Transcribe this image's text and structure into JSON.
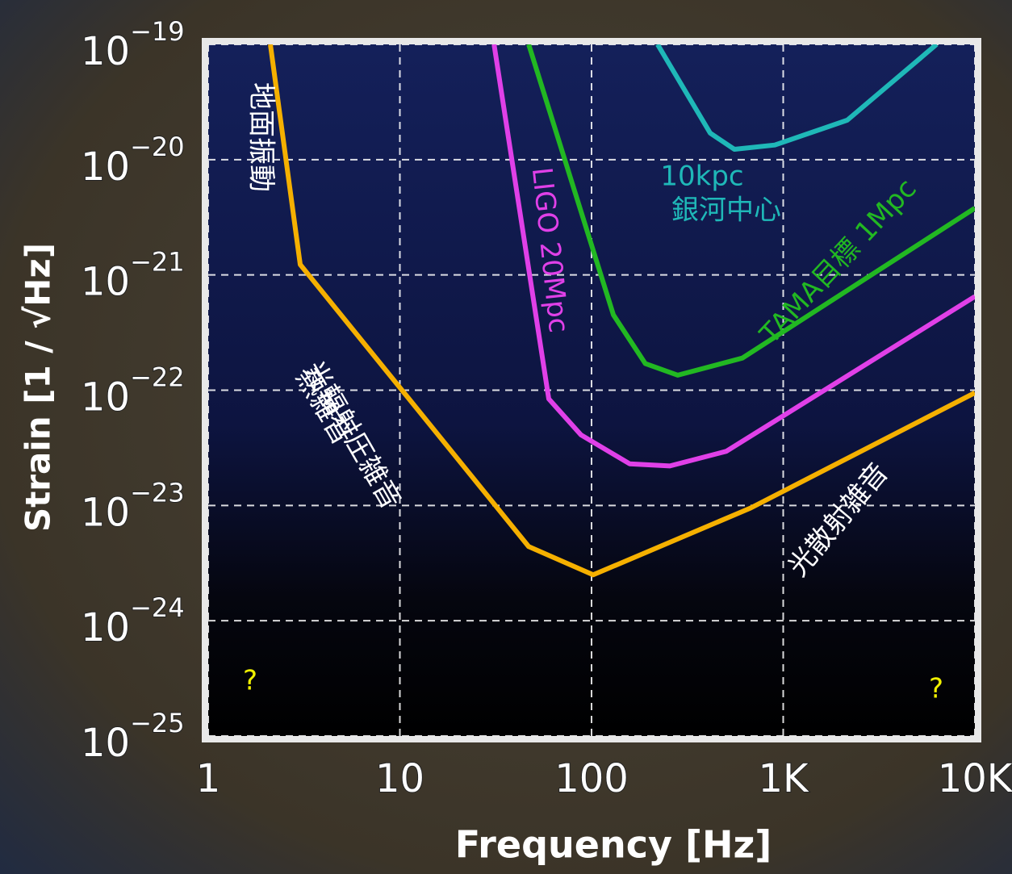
{
  "chart_data": {
    "type": "line",
    "xlabel": "Frequency [Hz]",
    "ylabel": "Strain [1 / √Hz]",
    "xscale": "log",
    "yscale": "log",
    "xlim": [
      1,
      10000
    ],
    "ylim": [
      1e-25,
      1e-19
    ],
    "xticks": [
      1,
      10,
      100,
      {
        "value": 1000,
        "label": "1K"
      },
      {
        "value": 10000,
        "label": "10K"
      }
    ],
    "yticks": [
      {
        "value": 1e-25,
        "label": "10",
        "exponent": "−25"
      },
      {
        "value": 1e-24,
        "label": "10",
        "exponent": "−24"
      },
      {
        "value": 1e-23,
        "label": "10",
        "exponent": "−23"
      },
      {
        "value": 1e-22,
        "label": "10",
        "exponent": "−22"
      },
      {
        "value": 1e-21,
        "label": "10",
        "exponent": "−21"
      },
      {
        "value": 1e-20,
        "label": "10",
        "exponent": "−20"
      },
      {
        "value": 1e-19,
        "label": "10",
        "exponent": "−19"
      }
    ],
    "grid": true,
    "series": [
      {
        "color": "#f5b000",
        "x": [
          2.11,
          3.02,
          47,
          102,
          676,
          10000
        ],
        "values": [
          1e-19,
          1.23e-21,
          4.4e-24,
          2.5e-24,
          9.5e-24,
          9.5e-23
        ]
      },
      {
        "color": "#e040e8",
        "x": [
          31,
          59.8,
          88,
          158,
          256,
          505,
          10000
        ],
        "values": [
          1e-19,
          8.4e-23,
          4.1e-23,
          2.3e-23,
          2.2e-23,
          2.95e-23,
          6.5e-22
        ]
      },
      {
        "color": "#22b822",
        "x": [
          47,
          130,
          191,
          282,
          612,
          10000
        ],
        "values": [
          1e-19,
          4.5e-22,
          1.7e-22,
          1.35e-22,
          1.9e-22,
          3.8e-21
        ]
      },
      {
        "color": "#1fb8b8",
        "x": [
          221,
          416,
          556,
          904,
          2160,
          6310
        ],
        "values": [
          1e-19,
          1.7e-20,
          1.23e-20,
          1.34e-20,
          2.2e-20,
          1e-19
        ]
      }
    ],
    "annotations": [
      {
        "text": "地面振動",
        "color": "#ffffff"
      },
      {
        "text": "熱雑音",
        "color": "#ffffff"
      },
      {
        "text": "光輻射圧雑音",
        "color": "#ffffff"
      },
      {
        "text": "光散射雑音",
        "color": "#ffffff"
      },
      {
        "text": "LIGO  20Mpc",
        "color": "#e040e8"
      },
      {
        "text": "TAMA目標  1Mpc",
        "color": "#22b822"
      },
      {
        "text": "10kpc",
        "color": "#1fb8b8"
      },
      {
        "text": "銀河中心",
        "color": "#1fb8b8"
      },
      {
        "text": "?",
        "color": "#f0f000"
      },
      {
        "text": "?",
        "color": "#f0f000"
      }
    ]
  }
}
